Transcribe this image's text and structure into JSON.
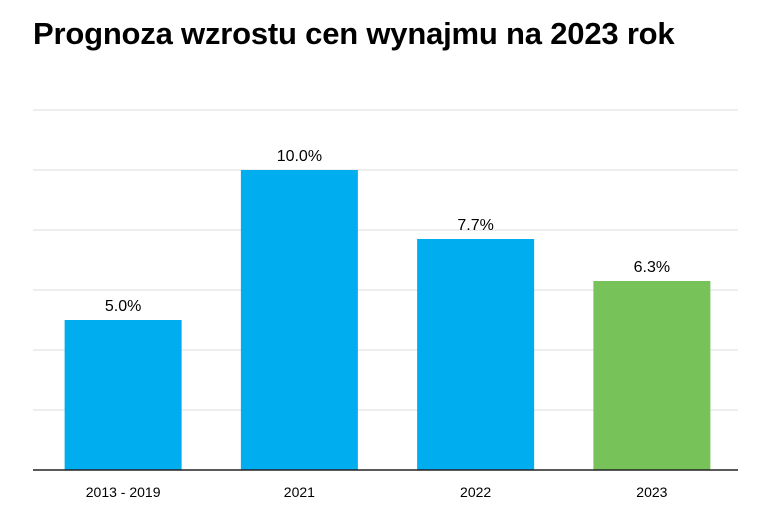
{
  "chart_data": {
    "type": "bar",
    "title": "Prognoza wzrostu cen wynajmu na 2023 rok",
    "xlabel": "",
    "ylabel": "",
    "categories": [
      "2013 - 2019",
      "2021",
      "2022",
      "2023"
    ],
    "values": [
      5.0,
      10.0,
      7.7,
      6.3
    ],
    "data_labels": [
      "5.0%",
      "10.0%",
      "7.7%",
      "6.3%"
    ],
    "bar_colors": [
      "#00adef",
      "#00adef",
      "#00adef",
      "#77c35a"
    ],
    "ylim": [
      0,
      12
    ],
    "grid": true,
    "legend": "none",
    "y_tick_labels_shown": false
  }
}
